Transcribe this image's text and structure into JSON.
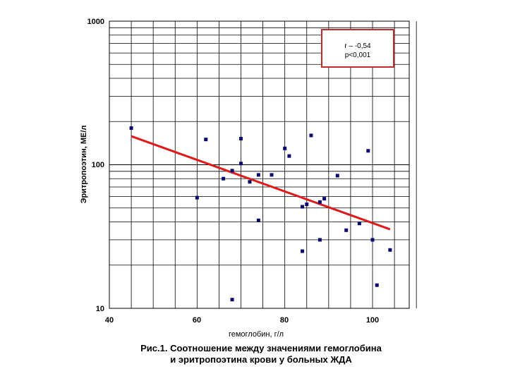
{
  "chart_data": {
    "type": "scatter",
    "xlabel": "гемоглобин, г/л",
    "ylabel": "Эритропоэтин, МЕ/л",
    "xlim": [
      40,
      110
    ],
    "ylim": [
      10,
      1000
    ],
    "y_scale": "log",
    "grid": true,
    "x_ticks": [
      "40",
      "60",
      "80",
      "100"
    ],
    "y_ticks": [
      "10",
      "100",
      "1000"
    ],
    "points": [
      {
        "x": 45,
        "y": 180
      },
      {
        "x": 62,
        "y": 150
      },
      {
        "x": 70,
        "y": 152
      },
      {
        "x": 86,
        "y": 160
      },
      {
        "x": 80,
        "y": 130
      },
      {
        "x": 81,
        "y": 115
      },
      {
        "x": 99,
        "y": 125
      },
      {
        "x": 70,
        "y": 102
      },
      {
        "x": 68,
        "y": 91
      },
      {
        "x": 66,
        "y": 80
      },
      {
        "x": 72,
        "y": 76
      },
      {
        "x": 74,
        "y": 85
      },
      {
        "x": 77,
        "y": 85
      },
      {
        "x": 92,
        "y": 84
      },
      {
        "x": 60,
        "y": 59
      },
      {
        "x": 84,
        "y": 51
      },
      {
        "x": 85,
        "y": 53
      },
      {
        "x": 88,
        "y": 55
      },
      {
        "x": 89,
        "y": 58
      },
      {
        "x": 74,
        "y": 41
      },
      {
        "x": 94,
        "y": 35
      },
      {
        "x": 97,
        "y": 39
      },
      {
        "x": 88,
        "y": 30
      },
      {
        "x": 100,
        "y": 30
      },
      {
        "x": 84,
        "y": 25
      },
      {
        "x": 104,
        "y": 25.5
      },
      {
        "x": 68,
        "y": 11.5
      },
      {
        "x": 101,
        "y": 14.5
      }
    ],
    "trendline": {
      "x": [
        45,
        104
      ],
      "y": [
        158,
        35.5
      ],
      "color": "#e01a1a"
    },
    "annotation": {
      "lines": [
        "r – -0,54",
        "p<0,001"
      ],
      "border_color": "#c0282a"
    },
    "point_color": "#0a0a6e"
  },
  "caption": {
    "line1": "Рис.1. Соотношение между значениями гемоглобина",
    "line2": "и эритропоэтина крови у больных ЖДА"
  }
}
